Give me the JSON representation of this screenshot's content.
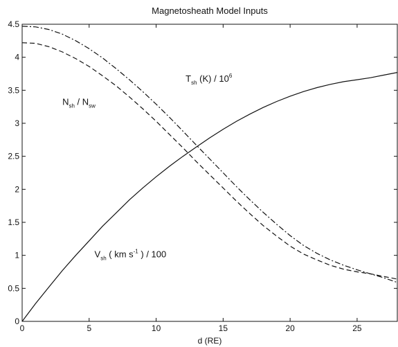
{
  "chart_data": {
    "type": "line",
    "title": "Magnetosheath Model Inputs",
    "xlabel": "d (RE)",
    "ylabel": "",
    "xlim": [
      0,
      28
    ],
    "ylim": [
      0,
      4.5
    ],
    "xticks": [
      "0",
      "5",
      "10",
      "15",
      "20",
      "25"
    ],
    "yticks": [
      "0",
      "0.5",
      "1",
      "1.5",
      "2",
      "2.5",
      "3",
      "3.5",
      "4",
      "4.5"
    ],
    "grid": false,
    "series": [
      {
        "style": "solid",
        "x": [
          0,
          1,
          2,
          3,
          4,
          5,
          6,
          7,
          8,
          9,
          10,
          11,
          12,
          13,
          14,
          15,
          16,
          17,
          18,
          19,
          20,
          21,
          22,
          23,
          24,
          25,
          26,
          27,
          28
        ],
        "y": [
          0.0,
          0.27,
          0.52,
          0.77,
          1.0,
          1.22,
          1.44,
          1.64,
          1.84,
          2.02,
          2.19,
          2.35,
          2.5,
          2.64,
          2.78,
          2.91,
          3.03,
          3.14,
          3.24,
          3.33,
          3.41,
          3.48,
          3.54,
          3.59,
          3.63,
          3.66,
          3.69,
          3.73,
          3.77
        ]
      },
      {
        "style": "dashed",
        "x": [
          0,
          1,
          2,
          3,
          4,
          5,
          6,
          7,
          8,
          9,
          10,
          11,
          12,
          13,
          14,
          15,
          16,
          17,
          18,
          19,
          20,
          21,
          22,
          23,
          24,
          25,
          26,
          27,
          28
        ],
        "y": [
          4.22,
          4.21,
          4.16,
          4.08,
          3.98,
          3.86,
          3.72,
          3.57,
          3.4,
          3.22,
          3.03,
          2.83,
          2.63,
          2.42,
          2.22,
          2.02,
          1.82,
          1.63,
          1.45,
          1.29,
          1.14,
          1.02,
          0.93,
          0.85,
          0.79,
          0.75,
          0.72,
          0.68,
          0.64
        ]
      },
      {
        "style": "dash-dot",
        "x": [
          0,
          1,
          2,
          3,
          4,
          5,
          6,
          7,
          8,
          9,
          10,
          11,
          12,
          13,
          14,
          15,
          16,
          17,
          18,
          19,
          20,
          21,
          22,
          23,
          24,
          25,
          26,
          27,
          28
        ],
        "y": [
          4.47,
          4.46,
          4.42,
          4.35,
          4.25,
          4.13,
          3.99,
          3.83,
          3.66,
          3.48,
          3.29,
          3.09,
          2.88,
          2.67,
          2.46,
          2.25,
          2.04,
          1.84,
          1.65,
          1.47,
          1.3,
          1.15,
          1.03,
          0.93,
          0.85,
          0.78,
          0.72,
          0.66,
          0.59
        ]
      }
    ],
    "annotations": [
      {
        "x": 12.2,
        "y": 3.63,
        "main": "T",
        "sub": "sh",
        "rest": "  (K) / 10",
        "sup": "6"
      },
      {
        "x": 3.0,
        "y": 3.28,
        "main": "N",
        "sub": "sh",
        "rest": " / N",
        "sub2": "sw"
      },
      {
        "x": 5.4,
        "y": 0.97,
        "main": "V",
        "sub": "sh",
        "rest": "  ( km s",
        "sup": "-1",
        "rest2": " ) / 100"
      }
    ]
  }
}
